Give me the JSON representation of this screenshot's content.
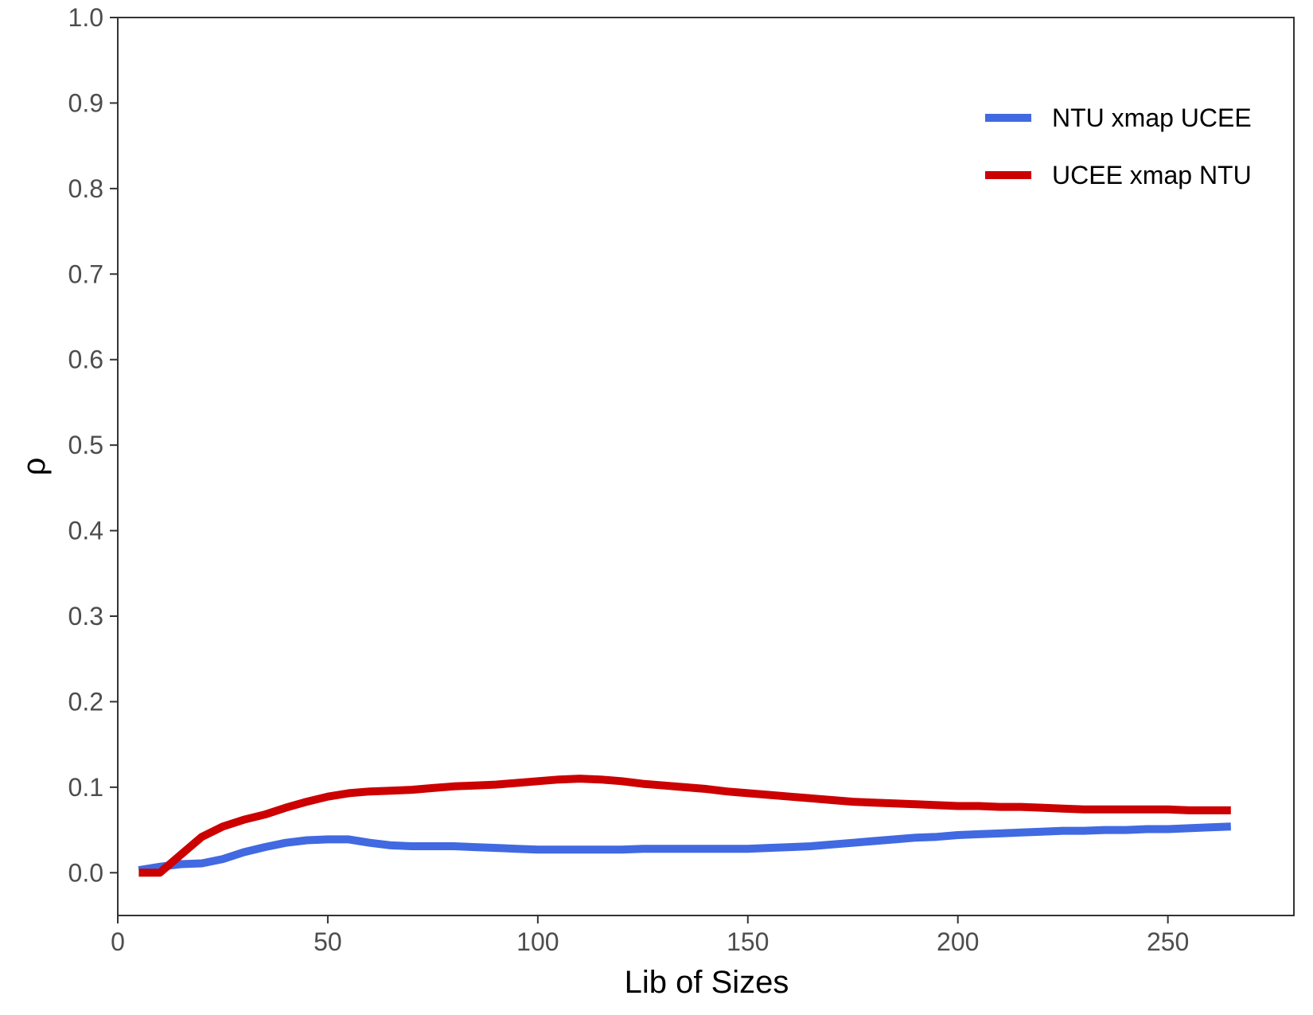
{
  "chart_data": {
    "type": "line",
    "title": "",
    "xlabel": "Lib of Sizes",
    "ylabel": "ρ",
    "xlim": [
      0,
      280
    ],
    "ylim": [
      -0.05,
      1.0
    ],
    "x_ticks": [
      0,
      50,
      100,
      150,
      200,
      250
    ],
    "x_tick_labels": [
      "0",
      "50",
      "100",
      "150",
      "200",
      "250"
    ],
    "y_ticks": [
      0.0,
      0.1,
      0.2,
      0.3,
      0.4,
      0.5,
      0.6,
      0.7,
      0.8,
      0.9,
      1.0
    ],
    "y_tick_labels": [
      "0.0",
      "0.1",
      "0.2",
      "0.3",
      "0.4",
      "0.5",
      "0.6",
      "0.7",
      "0.8",
      "0.9",
      "1.0"
    ],
    "grid": false,
    "legend_position": "top-right",
    "x": [
      5,
      10,
      15,
      20,
      25,
      30,
      35,
      40,
      45,
      50,
      55,
      60,
      65,
      70,
      75,
      80,
      85,
      90,
      95,
      100,
      105,
      110,
      115,
      120,
      125,
      130,
      135,
      140,
      145,
      150,
      155,
      160,
      165,
      170,
      175,
      180,
      185,
      190,
      195,
      200,
      205,
      210,
      215,
      220,
      225,
      230,
      235,
      240,
      245,
      250,
      255,
      260,
      265
    ],
    "series": [
      {
        "name": "NTU xmap UCEE",
        "color": "#4169E1",
        "values": [
          0.003,
          0.007,
          0.01,
          0.011,
          0.016,
          0.024,
          0.03,
          0.035,
          0.038,
          0.039,
          0.039,
          0.035,
          0.032,
          0.031,
          0.031,
          0.031,
          0.03,
          0.029,
          0.028,
          0.027,
          0.027,
          0.027,
          0.027,
          0.027,
          0.028,
          0.028,
          0.028,
          0.028,
          0.028,
          0.028,
          0.029,
          0.03,
          0.031,
          0.033,
          0.035,
          0.037,
          0.039,
          0.041,
          0.042,
          0.044,
          0.045,
          0.046,
          0.047,
          0.048,
          0.049,
          0.049,
          0.05,
          0.05,
          0.051,
          0.051,
          0.052,
          0.053,
          0.054
        ]
      },
      {
        "name": "UCEE xmap NTU",
        "color": "#CC0000",
        "values": [
          0.0,
          0.0,
          0.021,
          0.042,
          0.054,
          0.062,
          0.068,
          0.076,
          0.083,
          0.089,
          0.093,
          0.095,
          0.096,
          0.097,
          0.099,
          0.101,
          0.102,
          0.103,
          0.105,
          0.107,
          0.109,
          0.11,
          0.109,
          0.107,
          0.104,
          0.102,
          0.1,
          0.098,
          0.095,
          0.093,
          0.091,
          0.089,
          0.087,
          0.085,
          0.083,
          0.082,
          0.081,
          0.08,
          0.079,
          0.078,
          0.078,
          0.077,
          0.077,
          0.076,
          0.075,
          0.074,
          0.074,
          0.074,
          0.074,
          0.074,
          0.073,
          0.073,
          0.073
        ]
      }
    ]
  }
}
